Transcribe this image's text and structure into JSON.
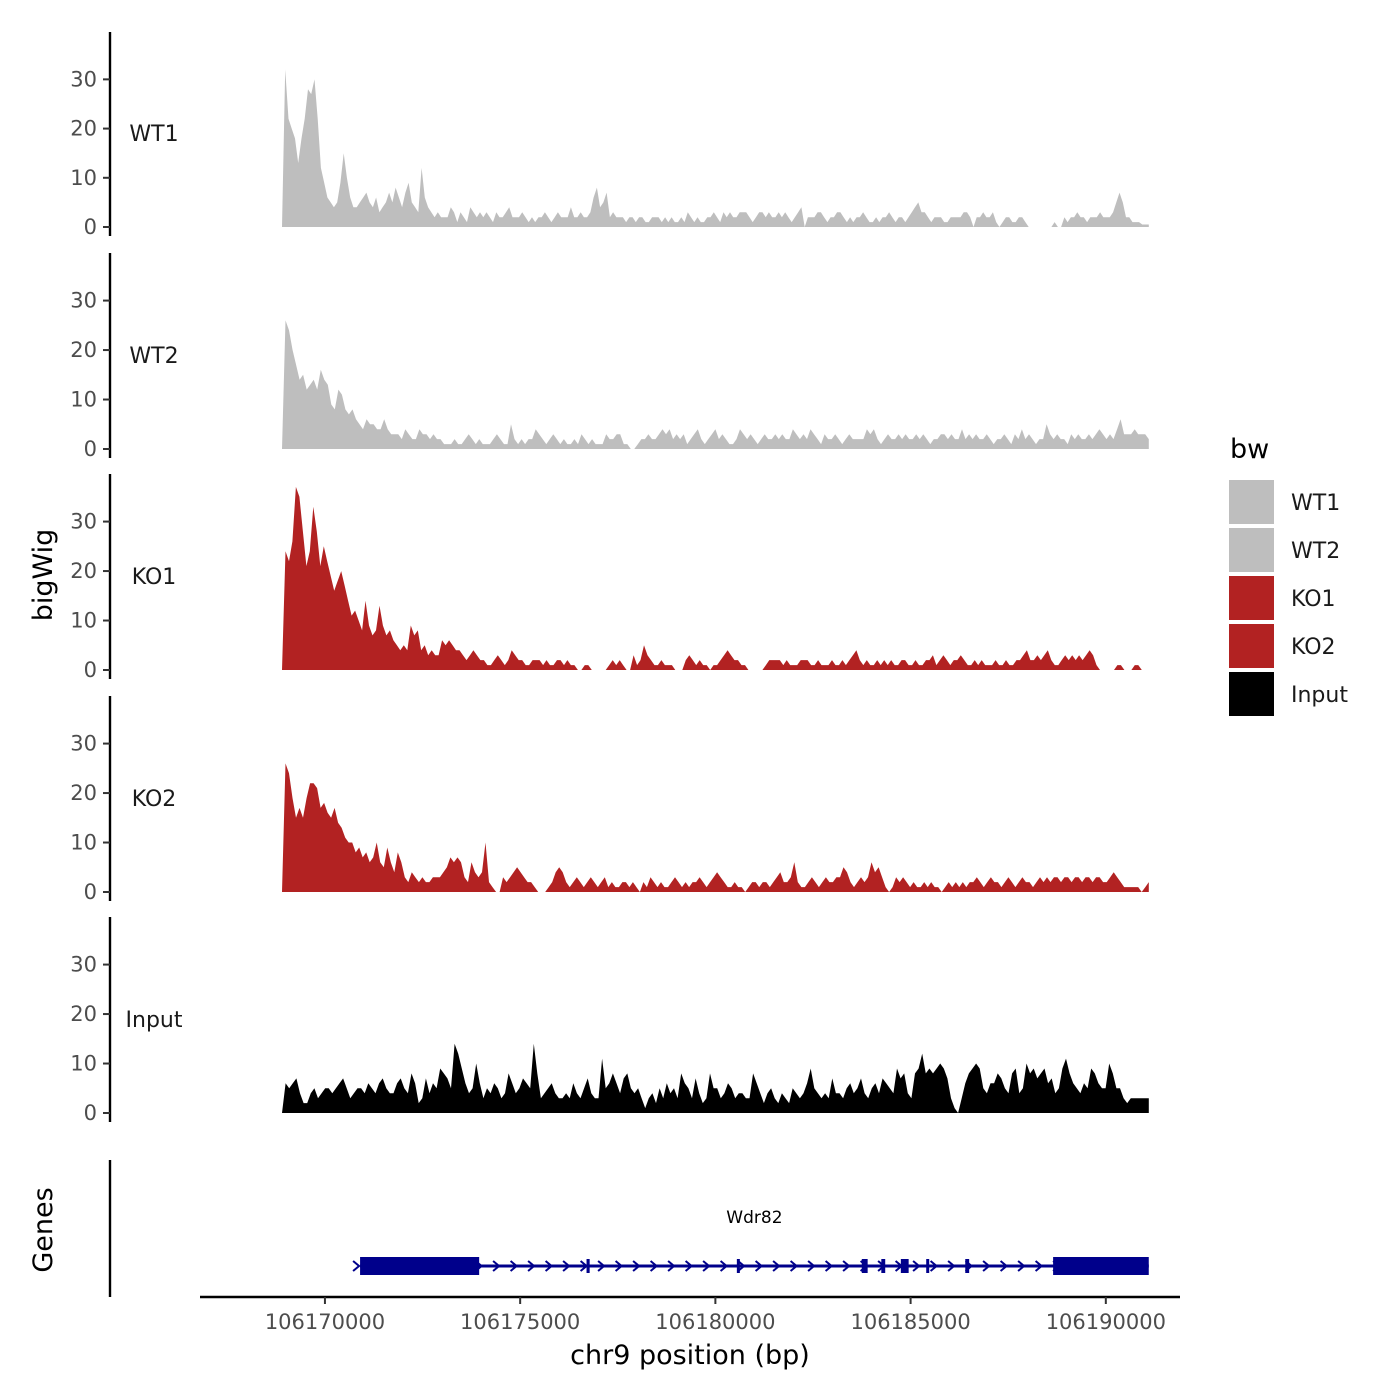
{
  "chart_data": {
    "type": "area",
    "chromosome": "chr9",
    "xlabel": "chr9 position (bp)",
    "ylabel": "bigWig",
    "genes_label": "Genes",
    "xlim": [
      106166800,
      106191900
    ],
    "ylim": [
      0,
      38
    ],
    "y_ticks": [
      0,
      10,
      20,
      30
    ],
    "x_ticks": [
      106170000,
      106175000,
      106180000,
      106185000,
      106190000
    ],
    "x_tick_labels": [
      "106170000",
      "106175000",
      "106180000",
      "106185000",
      "106190000"
    ],
    "legend": {
      "title": "bw",
      "entries": [
        {
          "label": "WT1",
          "color": "#bebebe"
        },
        {
          "label": "WT2",
          "color": "#bebebe"
        },
        {
          "label": "KO1",
          "color": "#b22222"
        },
        {
          "label": "KO2",
          "color": "#b22222"
        },
        {
          "label": "Input",
          "color": "#000000"
        }
      ]
    },
    "series": [
      {
        "name": "WT1",
        "color": "#bebebe",
        "x_start": 106168900,
        "x_end": 106191100,
        "values": [
          0,
          32,
          22,
          20,
          18,
          13,
          18,
          22,
          28,
          27,
          30,
          22,
          12,
          9,
          6,
          5,
          4,
          5,
          9,
          15,
          10,
          6,
          4,
          4,
          5,
          6,
          7,
          5,
          4,
          6,
          3,
          4,
          5,
          7,
          5,
          8,
          6,
          4,
          7,
          9,
          5,
          4,
          3,
          12,
          6,
          4,
          3,
          2,
          3,
          2,
          2,
          2,
          4,
          3,
          1,
          3,
          2,
          1,
          4,
          3,
          2,
          3,
          2,
          3,
          2,
          1,
          3,
          2,
          2,
          3,
          4,
          2,
          2,
          2,
          3,
          2,
          1,
          2,
          1,
          2,
          2,
          3,
          2,
          1,
          2,
          3,
          2,
          2,
          2,
          4,
          2,
          2,
          3,
          2,
          2,
          3,
          6,
          8,
          4,
          5,
          7,
          2,
          3,
          2,
          2,
          2,
          1,
          2,
          2,
          1,
          2,
          2,
          1,
          1,
          2,
          2,
          2,
          1,
          2,
          1,
          2,
          1,
          1,
          2,
          1,
          3,
          2,
          1,
          2,
          1,
          1,
          2,
          2,
          3,
          2,
          1,
          3,
          2,
          3,
          2,
          2,
          3,
          3,
          3,
          2,
          1,
          2,
          3,
          3,
          2,
          3,
          2,
          2,
          3,
          2,
          3,
          2,
          1,
          2,
          3,
          4,
          0,
          2,
          2,
          2,
          3,
          3,
          2,
          1,
          2,
          2,
          3,
          3,
          2,
          1,
          2,
          1,
          2,
          2,
          3,
          2,
          1,
          1,
          2,
          1,
          2,
          2,
          3,
          2,
          1,
          2,
          2,
          1,
          2,
          3,
          4,
          5,
          3,
          3,
          2,
          1,
          2,
          2,
          2,
          1,
          1,
          2,
          2,
          2,
          2,
          3,
          3,
          2,
          0,
          2,
          2,
          3,
          2,
          2,
          3,
          1,
          0,
          1,
          2,
          2,
          1,
          1,
          2,
          2,
          1,
          0,
          0,
          0,
          0,
          0,
          0,
          0,
          0,
          1,
          0,
          0,
          2,
          1,
          2,
          2,
          3,
          2,
          2,
          1,
          2,
          2,
          2,
          3,
          2,
          2,
          2,
          3,
          5,
          7,
          5,
          2,
          2,
          1,
          1,
          1,
          0.5,
          0.5,
          0.5
        ]
      },
      {
        "name": "WT2",
        "color": "#bebebe",
        "x_start": 106168900,
        "x_end": 106191100,
        "values": [
          0,
          26,
          24,
          20,
          17,
          14,
          15,
          12,
          13,
          14,
          12,
          16,
          14,
          13,
          9,
          8,
          12,
          11,
          8,
          7,
          8,
          6,
          5,
          4,
          6,
          5,
          5,
          4,
          4,
          6,
          4,
          3,
          3,
          3,
          2,
          4,
          3,
          2,
          2,
          4,
          3,
          3,
          2,
          3,
          2,
          2,
          1,
          1,
          1,
          2,
          1,
          1,
          2,
          3,
          2,
          1,
          2,
          1,
          1,
          1,
          2,
          3,
          2,
          1,
          1,
          5,
          2,
          1,
          2,
          1,
          2,
          2,
          4,
          3,
          2,
          1,
          2,
          3,
          2,
          1,
          2,
          1,
          1,
          2,
          1,
          3,
          2,
          1,
          2,
          1,
          1,
          1,
          3,
          2,
          2,
          3,
          3,
          1,
          1,
          0,
          0,
          1,
          2,
          2,
          3,
          2,
          2,
          3,
          4,
          3,
          4,
          2,
          3,
          2,
          3,
          1,
          2,
          3,
          4,
          2,
          1,
          2,
          3,
          4,
          2,
          3,
          2,
          1,
          1,
          2,
          4,
          3,
          2,
          3,
          2,
          1,
          2,
          3,
          2,
          2,
          3,
          2,
          3,
          2,
          2,
          4,
          3,
          2,
          3,
          2,
          4,
          3,
          2,
          1,
          3,
          2,
          2,
          3,
          2,
          1,
          2,
          3,
          2,
          2,
          2,
          2,
          4,
          3,
          4,
          2,
          1,
          2,
          3,
          2,
          2,
          3,
          2,
          3,
          2,
          2,
          3,
          2,
          3,
          2,
          1,
          2,
          2,
          3,
          3,
          2,
          3,
          2,
          2,
          4,
          2,
          3,
          2,
          3,
          2,
          2,
          3,
          2,
          1,
          2,
          2,
          3,
          2,
          1,
          3,
          2,
          4,
          2,
          3,
          2,
          1,
          2,
          2,
          5,
          3,
          2,
          3,
          2,
          2,
          1,
          3,
          2,
          3,
          2,
          2,
          3,
          2,
          3,
          4,
          3,
          2,
          3,
          2,
          4,
          6,
          3,
          3,
          3,
          4,
          3,
          3,
          3,
          2
        ]
      },
      {
        "name": "KO1",
        "color": "#b22222",
        "x_start": 106168900,
        "x_end": 106191100,
        "values": [
          0,
          24,
          22,
          26,
          37,
          35,
          28,
          21,
          24,
          33,
          28,
          21,
          25,
          22,
          19,
          16,
          18,
          20,
          17,
          14,
          11,
          12,
          10,
          8,
          14,
          9,
          7,
          8,
          13,
          9,
          7,
          8,
          6,
          5,
          4,
          5,
          4,
          9,
          7,
          8,
          4,
          5,
          3,
          4,
          3,
          3,
          6,
          5,
          6,
          5,
          4,
          4,
          3,
          2,
          3,
          4,
          3,
          2,
          2,
          1,
          1,
          2,
          3,
          2,
          1,
          2,
          4,
          3,
          2,
          2,
          1,
          1,
          2,
          2,
          2,
          1,
          2,
          1,
          1,
          2,
          2,
          1,
          2,
          1,
          1,
          0,
          0,
          1,
          1,
          0,
          0,
          0,
          0,
          0,
          1,
          2,
          1,
          2,
          1,
          0,
          0,
          3,
          1,
          2,
          5,
          3,
          2,
          1,
          1,
          2,
          1,
          1,
          1,
          0,
          0,
          0,
          2,
          3,
          2,
          1,
          2,
          1,
          1,
          0,
          1,
          1,
          2,
          3,
          4,
          3,
          2,
          2,
          1,
          1,
          0,
          0,
          0,
          0,
          0,
          1,
          2,
          2,
          2,
          2,
          1,
          2,
          1,
          1,
          1,
          2,
          2,
          2,
          1,
          1,
          2,
          1,
          1,
          1,
          2,
          1,
          1,
          2,
          1,
          2,
          3,
          4,
          2,
          1,
          2,
          1,
          1,
          2,
          1,
          2,
          1,
          2,
          1,
          1,
          2,
          2,
          1,
          1,
          2,
          1,
          1,
          2,
          2,
          3,
          1,
          2,
          3,
          2,
          1,
          2,
          2,
          3,
          2,
          1,
          1,
          2,
          1,
          2,
          1,
          1,
          1,
          2,
          1,
          1,
          2,
          1,
          1,
          2,
          2,
          3,
          4,
          2,
          2,
          3,
          2,
          3,
          4,
          2,
          1,
          1,
          2,
          3,
          2,
          3,
          2,
          3,
          2,
          3,
          4,
          3,
          1,
          0,
          0,
          0,
          0,
          0,
          1,
          1,
          0,
          0,
          0,
          1,
          1,
          0,
          0,
          0
        ]
      },
      {
        "name": "KO2",
        "color": "#b22222",
        "x_start": 106168900,
        "x_end": 106191100,
        "values": [
          0,
          26,
          24,
          19,
          15,
          17,
          15,
          19,
          22,
          22,
          21,
          17,
          18,
          16,
          15,
          17,
          14,
          13,
          11,
          10,
          10,
          8,
          9,
          7,
          8,
          6,
          7,
          10,
          6,
          5,
          9,
          6,
          4,
          8,
          6,
          3,
          2,
          4,
          3,
          2,
          3,
          2,
          2,
          3,
          3,
          3,
          4,
          5,
          7,
          6,
          7,
          6,
          3,
          2,
          6,
          4,
          3,
          4,
          10,
          2,
          1,
          0,
          0,
          3,
          2,
          3,
          4,
          5,
          4,
          3,
          2,
          2,
          1,
          0,
          0,
          0,
          1,
          2,
          4,
          5,
          4,
          2,
          1,
          2,
          3,
          2,
          1,
          2,
          3,
          2,
          1,
          2,
          3,
          1,
          2,
          1,
          1,
          2,
          2,
          1,
          2,
          1,
          0,
          2,
          1,
          3,
          2,
          1,
          2,
          1,
          1,
          2,
          3,
          2,
          1,
          2,
          1,
          2,
          2,
          3,
          2,
          1,
          2,
          3,
          4,
          3,
          2,
          1,
          1,
          2,
          1,
          1,
          0,
          1,
          2,
          2,
          1,
          2,
          2,
          1,
          2,
          3,
          4,
          2,
          2,
          3,
          6,
          2,
          1,
          1,
          2,
          3,
          2,
          1,
          2,
          3,
          2,
          2,
          3,
          3,
          5,
          4,
          2,
          1,
          2,
          3,
          2,
          3,
          6,
          4,
          5,
          3,
          1,
          0,
          1,
          3,
          2,
          3,
          2,
          1,
          2,
          1,
          1,
          2,
          1,
          2,
          1,
          1,
          0,
          1,
          2,
          1,
          2,
          1,
          2,
          1,
          2,
          2,
          3,
          2,
          1,
          2,
          3,
          2,
          2,
          1,
          2,
          3,
          2,
          1,
          2,
          3,
          2,
          2,
          1,
          2,
          3,
          2,
          3,
          2,
          3,
          3,
          2,
          3,
          3,
          2,
          3,
          3,
          2,
          3,
          3,
          2,
          3,
          3,
          2,
          2,
          3,
          4,
          3,
          2,
          1,
          1,
          1,
          1,
          1,
          0,
          1,
          2
        ]
      },
      {
        "name": "Input",
        "color": "#000000",
        "x_start": 106168900,
        "x_end": 106191100,
        "values": [
          0,
          6,
          5,
          6,
          7,
          4,
          2,
          2,
          4,
          5,
          3,
          4,
          5,
          5,
          4,
          5,
          6,
          7,
          5,
          3,
          4,
          5,
          5,
          4,
          6,
          5,
          4,
          6,
          7,
          5,
          4,
          4,
          6,
          7,
          5,
          4,
          8,
          6,
          2,
          3,
          7,
          4,
          6,
          5,
          9,
          8,
          7,
          5,
          14,
          12,
          9,
          6,
          4,
          5,
          10,
          6,
          3,
          5,
          4,
          6,
          5,
          3,
          4,
          8,
          6,
          4,
          5,
          7,
          6,
          5,
          14,
          8,
          3,
          4,
          5,
          6,
          4,
          3,
          3,
          4,
          3,
          6,
          4,
          3,
          5,
          7,
          4,
          3,
          3,
          11,
          5,
          6,
          8,
          6,
          4,
          7,
          8,
          5,
          4,
          5,
          3,
          1,
          3,
          4,
          2,
          5,
          3,
          6,
          4,
          5,
          3,
          8,
          6,
          5,
          3,
          7,
          4,
          2,
          3,
          8,
          5,
          5,
          3,
          4,
          6,
          5,
          3,
          4,
          4,
          3,
          3,
          8,
          6,
          4,
          2,
          4,
          5,
          3,
          2,
          4,
          3,
          2,
          5,
          4,
          3,
          4,
          6,
          9,
          5,
          4,
          3,
          4,
          3,
          7,
          4,
          4,
          3,
          5,
          6,
          4,
          5,
          7,
          4,
          3,
          5,
          6,
          4,
          7,
          6,
          5,
          4,
          9,
          7,
          8,
          4,
          3,
          8,
          9,
          12,
          8,
          9,
          8,
          9,
          10,
          9,
          7,
          3,
          1,
          0,
          3,
          6,
          8,
          9,
          10,
          9,
          5,
          4,
          6,
          6,
          8,
          7,
          5,
          4,
          8,
          9,
          4,
          5,
          10,
          8,
          9,
          7,
          8,
          9,
          6,
          7,
          4,
          5,
          9,
          11,
          8,
          6,
          5,
          4,
          6,
          5,
          9,
          8,
          6,
          5,
          5,
          10,
          8,
          5,
          5,
          3,
          2,
          3,
          3,
          3,
          3,
          3,
          3
        ]
      }
    ],
    "genes": [
      {
        "name": "Wdr82",
        "strand": "+",
        "start": 106170900,
        "end": 106191100,
        "exons": [
          [
            106170900,
            106173950
          ],
          [
            106176700,
            106176780
          ],
          [
            106180550,
            106180620
          ],
          [
            106183750,
            106183900
          ],
          [
            106184250,
            106184350
          ],
          [
            106184750,
            106184950
          ],
          [
            106185400,
            106185450
          ],
          [
            106186400,
            106186500
          ],
          [
            106188650,
            106191100
          ]
        ]
      }
    ]
  }
}
